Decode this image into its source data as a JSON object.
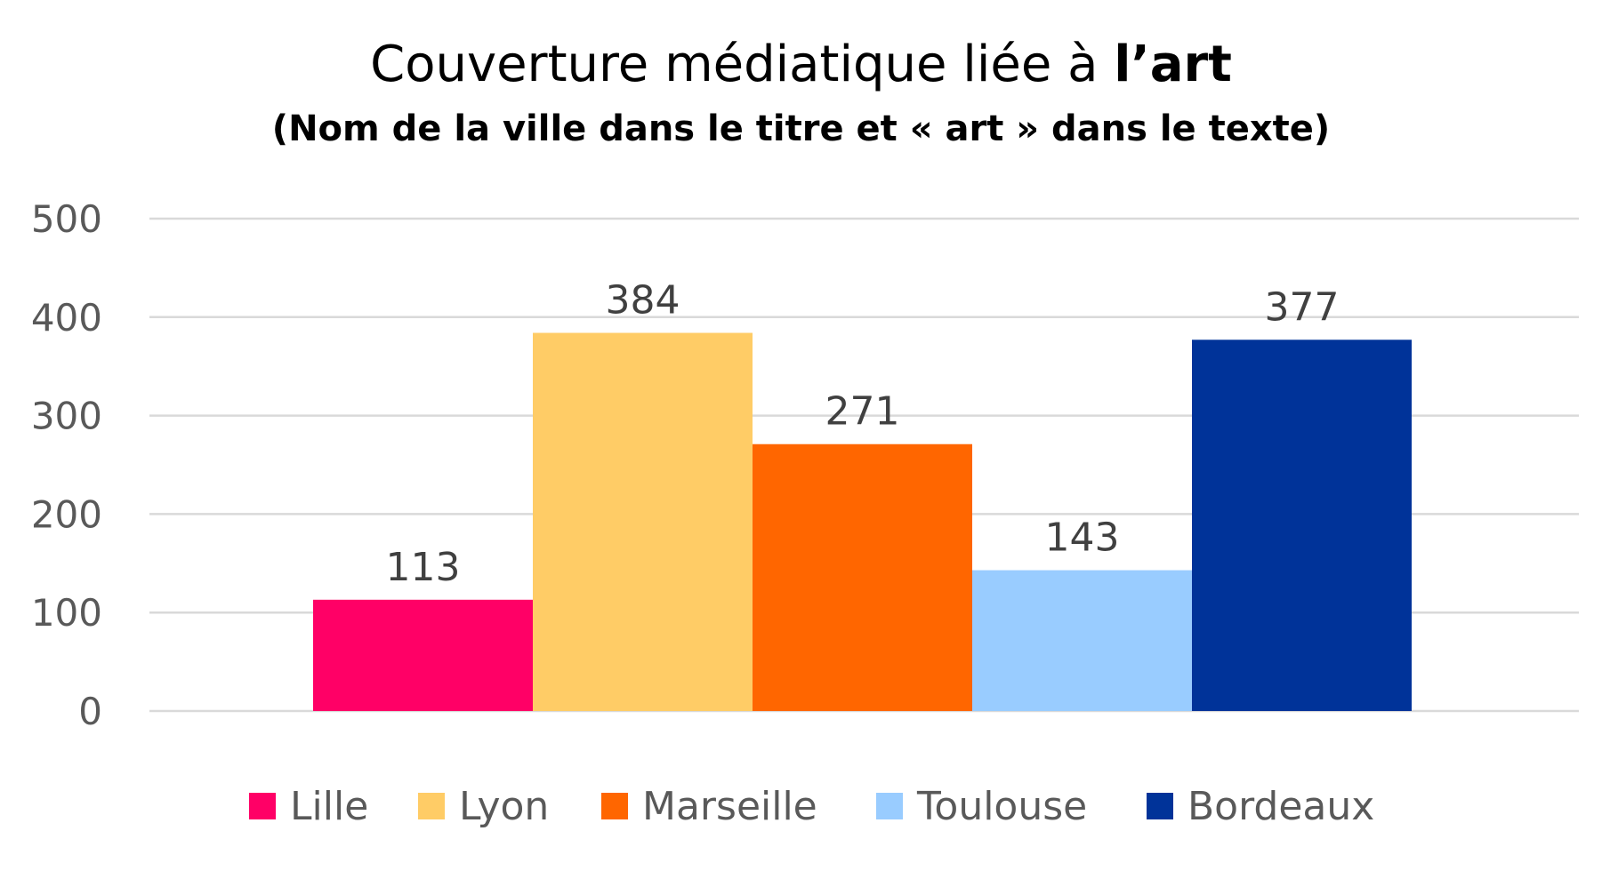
{
  "chart_data": {
    "type": "bar",
    "title_prefix": "Couverture médiatique liée à ",
    "title_emphasis": "l’art",
    "subtitle": "(Nom de la ville dans le titre et « art » dans le texte)",
    "xlabel": "",
    "ylabel": "",
    "ylim": [
      0,
      500
    ],
    "yticks": [
      0,
      100,
      200,
      300,
      400,
      500
    ],
    "grid": true,
    "legend_position": "bottom",
    "series": [
      {
        "name": "Lille",
        "value": 113,
        "color": "#FF0066"
      },
      {
        "name": "Lyon",
        "value": 384,
        "color": "#FFCC66"
      },
      {
        "name": "Marseille",
        "value": 271,
        "color": "#FF6600"
      },
      {
        "name": "Toulouse",
        "value": 143,
        "color": "#99CCFF"
      },
      {
        "name": "Bordeaux",
        "value": 377,
        "color": "#003399"
      }
    ]
  }
}
